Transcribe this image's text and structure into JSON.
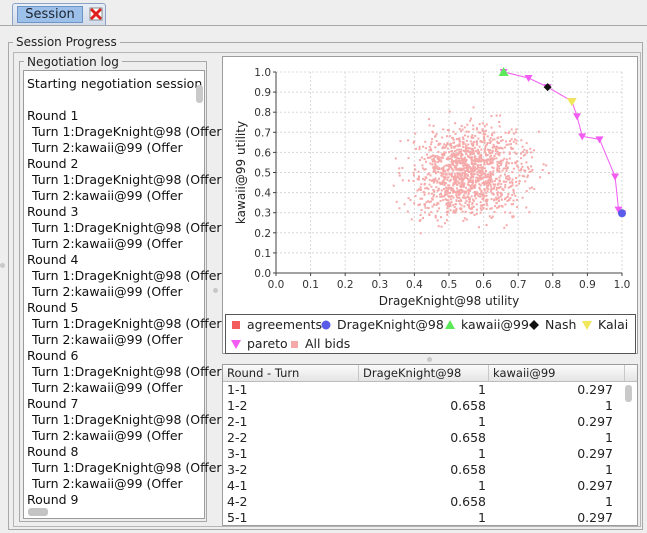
{
  "tabs": [
    {
      "label": "Session",
      "active": true,
      "close_icon": "close-icon"
    }
  ],
  "session_progress": {
    "title": "Session Progress"
  },
  "negotiation_log": {
    "title": "Negotiation log",
    "lines": [
      {
        "text": "Starting negotiation session",
        "indent": false
      },
      {
        "text": "",
        "indent": false
      },
      {
        "text": "Round 1",
        "indent": false
      },
      {
        "text": "Turn 1:DrageKnight@98  (Offer",
        "indent": true
      },
      {
        "text": "Turn 2:kawaii@99  (Offer",
        "indent": true
      },
      {
        "text": "Round 2",
        "indent": false
      },
      {
        "text": "Turn 1:DrageKnight@98  (Offer",
        "indent": true
      },
      {
        "text": "Turn 2:kawaii@99  (Offer",
        "indent": true
      },
      {
        "text": "Round 3",
        "indent": false
      },
      {
        "text": "Turn 1:DrageKnight@98  (Offer",
        "indent": true
      },
      {
        "text": "Turn 2:kawaii@99  (Offer",
        "indent": true
      },
      {
        "text": "Round 4",
        "indent": false
      },
      {
        "text": "Turn 1:DrageKnight@98  (Offer",
        "indent": true
      },
      {
        "text": "Turn 2:kawaii@99  (Offer",
        "indent": true
      },
      {
        "text": "Round 5",
        "indent": false
      },
      {
        "text": "Turn 1:DrageKnight@98  (Offer",
        "indent": true
      },
      {
        "text": "Turn 2:kawaii@99  (Offer",
        "indent": true
      },
      {
        "text": "Round 6",
        "indent": false
      },
      {
        "text": "Turn 1:DrageKnight@98  (Offer",
        "indent": true
      },
      {
        "text": "Turn 2:kawaii@99  (Offer",
        "indent": true
      },
      {
        "text": "Round 7",
        "indent": false
      },
      {
        "text": "Turn 1:DrageKnight@98  (Offer",
        "indent": true
      },
      {
        "text": "Turn 2:kawaii@99  (Offer",
        "indent": true
      },
      {
        "text": "Round 8",
        "indent": false
      },
      {
        "text": "Turn 1:DrageKnight@98  (Offer",
        "indent": true
      },
      {
        "text": "Turn 2:kawaii@99  (Offer",
        "indent": true
      },
      {
        "text": "Round 9",
        "indent": false
      }
    ]
  },
  "chart_data": {
    "type": "scatter",
    "xlabel": "DrageKnight@98 utility",
    "ylabel": "kawaii@99 utility",
    "xlim": [
      0.0,
      1.0
    ],
    "ylim": [
      0.0,
      1.0
    ],
    "xticks": [
      "0.0",
      "0.1",
      "0.2",
      "0.3",
      "0.4",
      "0.5",
      "0.6",
      "0.7",
      "0.8",
      "0.9",
      "1.0"
    ],
    "yticks": [
      "0.0",
      "0.1",
      "0.2",
      "0.3",
      "0.4",
      "0.5",
      "0.6",
      "0.7",
      "0.8",
      "0.9",
      "1.0"
    ],
    "grid": true,
    "legend_position": "bottom",
    "series": [
      {
        "name": "agreements",
        "color": "#f25c5c",
        "marker": "square",
        "points": []
      },
      {
        "name": "DrageKnight@98",
        "color": "#5b5bea",
        "marker": "circle",
        "points": [
          [
            1.0,
            0.297
          ]
        ]
      },
      {
        "name": "kawaii@99",
        "color": "#5be85b",
        "marker": "triangle-up",
        "points": [
          [
            0.658,
            1.0
          ]
        ]
      },
      {
        "name": "Nash",
        "color": "#111111",
        "marker": "diamond",
        "points": [
          [
            0.785,
            0.925
          ]
        ]
      },
      {
        "name": "Kalai",
        "color": "#f0e85a",
        "marker": "triangle-down",
        "points": [
          [
            0.855,
            0.855
          ]
        ]
      },
      {
        "name": "pareto",
        "color": "#f25cf2",
        "marker": "triangle-down",
        "line": true,
        "points": [
          [
            0.658,
            1.0
          ],
          [
            0.73,
            0.97
          ],
          [
            0.785,
            0.925
          ],
          [
            0.855,
            0.855
          ],
          [
            0.87,
            0.78
          ],
          [
            0.885,
            0.68
          ],
          [
            0.935,
            0.665
          ],
          [
            0.98,
            0.48
          ],
          [
            0.99,
            0.315
          ],
          [
            1.0,
            0.297
          ]
        ]
      },
      {
        "name": "All bids",
        "color": "#f5a9a9",
        "marker": "dot",
        "cloud": true,
        "points": []
      }
    ],
    "colors": {
      "axis": "#444444",
      "grid": "#d8d8d8",
      "bids": "#f5a9a9",
      "pareto": "#f25cf2"
    }
  },
  "legend": {
    "items": [
      {
        "name": "agreements",
        "icon": "square-icon",
        "color": "#f25c5c"
      },
      {
        "name": "DrageKnight@98",
        "icon": "circle-icon",
        "color": "#5b5bea"
      },
      {
        "name": "kawaii@99",
        "icon": "triangle-up-icon",
        "color": "#5be85b"
      },
      {
        "name": "Nash",
        "icon": "diamond-icon",
        "color": "#111111"
      },
      {
        "name": "Kalai",
        "icon": "triangle-down-icon",
        "color": "#f0e85a"
      },
      {
        "name": "pareto",
        "icon": "triangle-down-icon",
        "color": "#f25cf2"
      },
      {
        "name": "All bids",
        "icon": "square-icon",
        "color": "#f5a9a9"
      }
    ]
  },
  "table": {
    "columns": [
      "Round - Turn",
      "DrageKnight@98",
      "kawaii@99"
    ],
    "rows": [
      [
        "1-1",
        "1",
        "0.297"
      ],
      [
        "1-2",
        "0.658",
        "1"
      ],
      [
        "2-1",
        "1",
        "0.297"
      ],
      [
        "2-2",
        "0.658",
        "1"
      ],
      [
        "3-1",
        "1",
        "0.297"
      ],
      [
        "3-2",
        "0.658",
        "1"
      ],
      [
        "4-1",
        "1",
        "0.297"
      ],
      [
        "4-2",
        "0.658",
        "1"
      ],
      [
        "5-1",
        "1",
        "0.297"
      ]
    ]
  }
}
